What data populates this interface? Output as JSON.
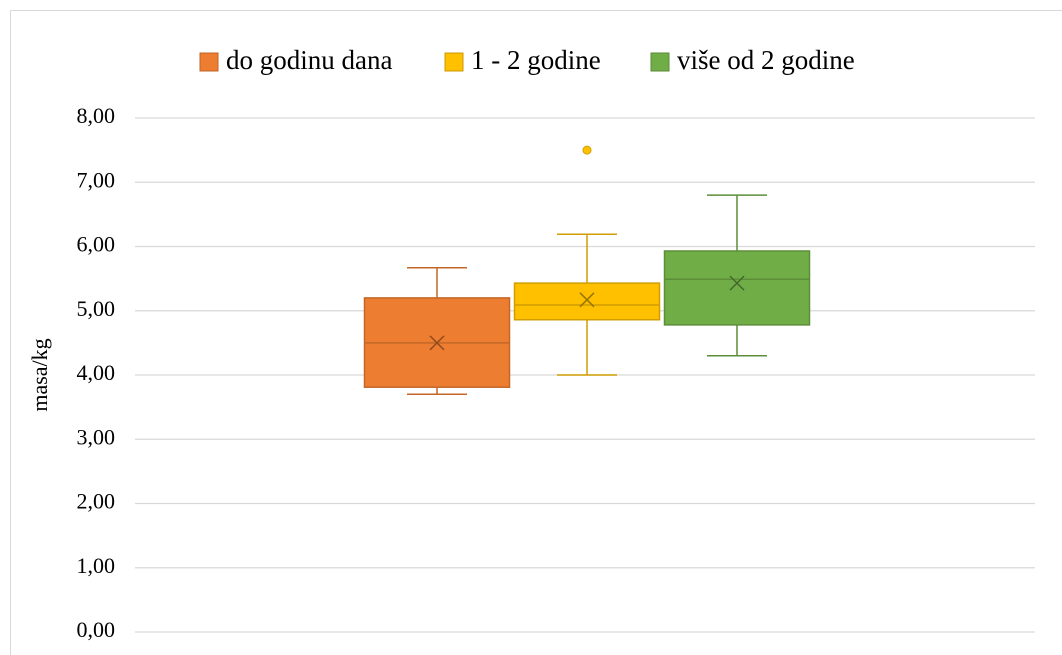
{
  "chart_data": {
    "type": "box",
    "y_label": "masa/kg",
    "ylim": [
      0,
      8
    ],
    "yticks": [
      {
        "value": 0,
        "label": "0,00"
      },
      {
        "value": 1,
        "label": "1,00"
      },
      {
        "value": 2,
        "label": "2,00"
      },
      {
        "value": 3,
        "label": "3,00"
      },
      {
        "value": 4,
        "label": "4,00"
      },
      {
        "value": 5,
        "label": "5,00"
      },
      {
        "value": 6,
        "label": "6,00"
      },
      {
        "value": 7,
        "label": "7,00"
      },
      {
        "value": 8,
        "label": "8,00"
      }
    ],
    "grid": true,
    "legend": "top",
    "series": [
      {
        "name": "do godinu dana",
        "color": "#ED7D31",
        "min": 3.7,
        "q1": 3.81,
        "median": 4.5,
        "q3": 5.2,
        "max": 5.67,
        "mean": 4.5,
        "outliers": []
      },
      {
        "name": "1 - 2 godine",
        "color": "#FFC000",
        "min": 4.0,
        "q1": 4.86,
        "median": 5.09,
        "q3": 5.43,
        "max": 6.19,
        "mean": 5.17,
        "outliers": [
          7.5
        ]
      },
      {
        "name": "više od 2 godine",
        "color": "#70AD47",
        "min": 4.3,
        "q1": 4.78,
        "median": 5.49,
        "q3": 5.93,
        "max": 6.8,
        "mean": 5.43,
        "outliers": []
      }
    ]
  }
}
